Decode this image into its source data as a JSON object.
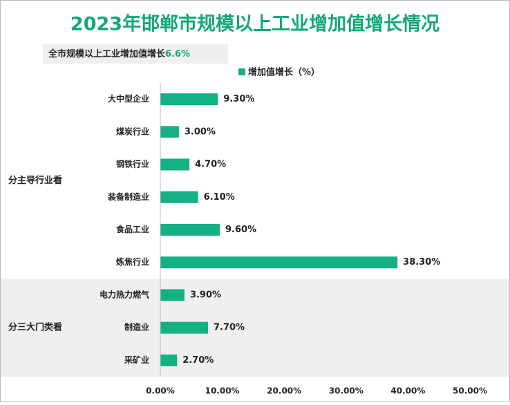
{
  "chart_data": {
    "type": "bar",
    "orientation": "horizontal",
    "title": "2023年邯郸市规模以上工业增加值增长情况",
    "annotation": {
      "text": "全市规模以上工业增加值增长",
      "value": "6.6%"
    },
    "legend": "增加值增长（%）",
    "color": "#13b183",
    "groups": [
      {
        "name": "分主导行业看",
        "categories": [
          "大中型企业",
          "煤炭行业",
          "钢铁行业",
          "装备制造业",
          "食品工业",
          "炼焦行业"
        ],
        "values": [
          9.3,
          3.0,
          4.7,
          6.1,
          9.6,
          38.3
        ],
        "value_labels": [
          "9.30%",
          "3.00%",
          "4.70%",
          "6.10%",
          "9.60%",
          "38.30%"
        ]
      },
      {
        "name": "分三大门类看",
        "categories": [
          "电力热力燃气",
          "制造业",
          "采矿业"
        ],
        "values": [
          3.9,
          7.7,
          2.7
        ],
        "value_labels": [
          "3.90%",
          "7.70%",
          "2.70%"
        ]
      }
    ],
    "xlim": [
      0,
      50
    ],
    "xticks": [
      {
        "value": 0,
        "label": "0.00%"
      },
      {
        "value": 10,
        "label": "10.00%"
      },
      {
        "value": 20,
        "label": "20.00%"
      },
      {
        "value": 30,
        "label": "30.00%"
      },
      {
        "value": 40,
        "label": "40.00%"
      },
      {
        "value": 50,
        "label": "50.00%"
      }
    ]
  }
}
